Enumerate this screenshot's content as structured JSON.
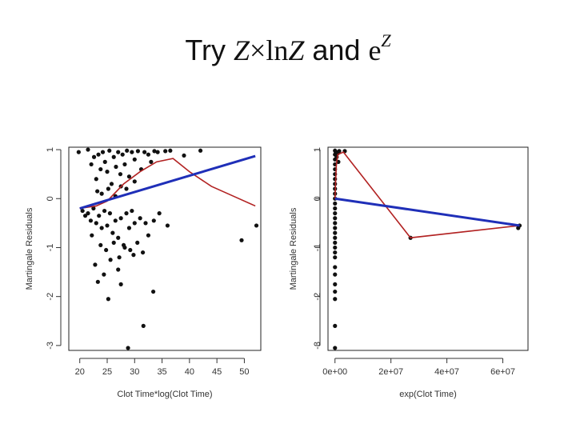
{
  "title": {
    "prefix": "Try ",
    "z1": "Z",
    "times": "×",
    "ln": "ln",
    "z2": "Z",
    "and": " and ",
    "e": "e",
    "sup": "Z"
  },
  "colors": {
    "points": "#111111",
    "smooth": "#b22222",
    "fit": "#1f2fb8"
  },
  "chart_data": [
    {
      "type": "scatter",
      "xlabel": "Clot Time*log(Clot Time)",
      "ylabel": "Martingale Residuals",
      "xlim": [
        18,
        53
      ],
      "ylim": [
        -3.1,
        1.05
      ],
      "xticks": [
        20,
        25,
        30,
        35,
        40,
        45,
        50
      ],
      "xtick_labels": [
        "20",
        "25",
        "30",
        "35",
        "40",
        "45",
        "50"
      ],
      "yticks": [
        1,
        0,
        -1,
        -2,
        -3
      ],
      "ytick_labels": [
        "1",
        "0",
        "-1",
        "-2",
        "-3"
      ],
      "fit_line": [
        [
          20,
          -0.2
        ],
        [
          52,
          0.87
        ]
      ],
      "smooth_line": [
        [
          20,
          -0.2
        ],
        [
          23,
          -0.15
        ],
        [
          25,
          -0.05
        ],
        [
          28,
          0.3
        ],
        [
          31,
          0.55
        ],
        [
          34,
          0.75
        ],
        [
          37,
          0.82
        ],
        [
          40,
          0.55
        ],
        [
          44,
          0.25
        ],
        [
          48,
          0.05
        ],
        [
          52,
          -0.15
        ]
      ],
      "points": [
        [
          19.8,
          0.95
        ],
        [
          21.5,
          1.0
        ],
        [
          22.1,
          0.7
        ],
        [
          22.6,
          0.85
        ],
        [
          23.0,
          0.4
        ],
        [
          23.4,
          0.9
        ],
        [
          23.8,
          0.6
        ],
        [
          24.2,
          0.95
        ],
        [
          24.6,
          0.75
        ],
        [
          25.0,
          0.55
        ],
        [
          25.4,
          0.98
        ],
        [
          25.8,
          0.3
        ],
        [
          26.2,
          0.85
        ],
        [
          26.6,
          0.65
        ],
        [
          27.0,
          0.95
        ],
        [
          27.4,
          0.5
        ],
        [
          27.8,
          0.9
        ],
        [
          28.2,
          0.7
        ],
        [
          28.6,
          0.98
        ],
        [
          29.0,
          0.45
        ],
        [
          29.5,
          0.95
        ],
        [
          30.0,
          0.8
        ],
        [
          30.6,
          0.97
        ],
        [
          31.2,
          0.6
        ],
        [
          31.8,
          0.95
        ],
        [
          32.5,
          0.9
        ],
        [
          33.0,
          0.75
        ],
        [
          33.6,
          0.97
        ],
        [
          34.2,
          0.95
        ],
        [
          35.6,
          0.97
        ],
        [
          36.5,
          0.98
        ],
        [
          39.0,
          0.88
        ],
        [
          42.0,
          0.98
        ],
        [
          23.2,
          0.15
        ],
        [
          24.0,
          0.1
        ],
        [
          25.2,
          0.2
        ],
        [
          26.5,
          0.05
        ],
        [
          27.5,
          0.25
        ],
        [
          28.5,
          0.2
        ],
        [
          30.0,
          0.35
        ],
        [
          20.5,
          -0.25
        ],
        [
          21.0,
          -0.35
        ],
        [
          21.5,
          -0.3
        ],
        [
          22.0,
          -0.45
        ],
        [
          22.5,
          -0.2
        ],
        [
          23.0,
          -0.5
        ],
        [
          23.5,
          -0.35
        ],
        [
          24.0,
          -0.6
        ],
        [
          24.5,
          -0.25
        ],
        [
          25.0,
          -0.55
        ],
        [
          25.5,
          -0.3
        ],
        [
          26.0,
          -0.7
        ],
        [
          26.5,
          -0.45
        ],
        [
          27.0,
          -0.8
        ],
        [
          27.5,
          -0.4
        ],
        [
          28.0,
          -0.95
        ],
        [
          28.5,
          -0.3
        ],
        [
          29.0,
          -0.6
        ],
        [
          29.5,
          -0.25
        ],
        [
          30.0,
          -0.5
        ],
        [
          30.5,
          -0.9
        ],
        [
          31.0,
          -0.4
        ],
        [
          31.5,
          -1.1
        ],
        [
          32.0,
          -0.5
        ],
        [
          32.5,
          -0.75
        ],
        [
          33.5,
          -0.45
        ],
        [
          34.5,
          -0.3
        ],
        [
          36.0,
          -0.55
        ],
        [
          22.2,
          -0.75
        ],
        [
          23.8,
          -0.95
        ],
        [
          24.8,
          -1.05
        ],
        [
          26.2,
          -0.9
        ],
        [
          27.2,
          -1.2
        ],
        [
          28.2,
          -1.0
        ],
        [
          29.2,
          -1.05
        ],
        [
          22.8,
          -1.35
        ],
        [
          24.4,
          -1.55
        ],
        [
          25.6,
          -1.25
        ],
        [
          27.0,
          -1.45
        ],
        [
          29.8,
          -1.15
        ],
        [
          25.2,
          -2.05
        ],
        [
          27.5,
          -1.75
        ],
        [
          31.6,
          -2.6
        ],
        [
          33.4,
          -1.9
        ],
        [
          28.8,
          -3.05
        ],
        [
          49.5,
          -0.85
        ],
        [
          52.2,
          -0.55
        ],
        [
          23.3,
          -1.7
        ]
      ]
    },
    {
      "type": "scatter",
      "xlabel": "exp(Clot Time)",
      "ylabel": "Martingale Residuals",
      "xlim": [
        -2500000,
        69000000
      ],
      "ylim": [
        -3.1,
        1.05
      ],
      "xticks": [
        0,
        20000000,
        40000000,
        60000000
      ],
      "xtick_labels": [
        "0e+00",
        "2e+07",
        "4e+07",
        "6e+07"
      ],
      "yticks": [
        1,
        0,
        -1,
        -2,
        -3
      ],
      "ytick_labels": [
        "1",
        "0",
        "-1",
        "-2",
        "-3"
      ],
      "fit_line": [
        [
          0,
          0.0
        ],
        [
          66000000,
          -0.55
        ]
      ],
      "smooth_line": [
        [
          0,
          0.0
        ],
        [
          200000,
          0.3
        ],
        [
          500000,
          0.7
        ],
        [
          1000000,
          0.9
        ],
        [
          3000000,
          0.95
        ],
        [
          27000000,
          -0.8
        ],
        [
          66000000,
          -0.55
        ]
      ],
      "points": [
        [
          0,
          0.98
        ],
        [
          0,
          0.9
        ],
        [
          0,
          0.8
        ],
        [
          0,
          0.7
        ],
        [
          0,
          0.6
        ],
        [
          0,
          0.5
        ],
        [
          0,
          0.4
        ],
        [
          0,
          0.3
        ],
        [
          0,
          0.2
        ],
        [
          0,
          0.1
        ],
        [
          0,
          0.0
        ],
        [
          0,
          -0.1
        ],
        [
          0,
          -0.2
        ],
        [
          0,
          -0.3
        ],
        [
          0,
          -0.4
        ],
        [
          0,
          -0.5
        ],
        [
          0,
          -0.6
        ],
        [
          0,
          -0.7
        ],
        [
          0,
          -0.8
        ],
        [
          0,
          -0.9
        ],
        [
          0,
          -1.0
        ],
        [
          0,
          -1.1
        ],
        [
          0,
          -1.2
        ],
        [
          0,
          -1.4
        ],
        [
          0,
          -1.55
        ],
        [
          0,
          -1.75
        ],
        [
          0,
          -1.9
        ],
        [
          0,
          -2.05
        ],
        [
          0,
          -2.6
        ],
        [
          0,
          -3.05
        ],
        [
          300000,
          0.95
        ],
        [
          600000,
          0.85
        ],
        [
          900000,
          0.92
        ],
        [
          1200000,
          0.75
        ],
        [
          1500000,
          0.97
        ],
        [
          3500000,
          0.97
        ],
        [
          27000000,
          -0.8
        ],
        [
          66000000,
          -0.55
        ],
        [
          65500000,
          -0.6
        ]
      ]
    }
  ]
}
